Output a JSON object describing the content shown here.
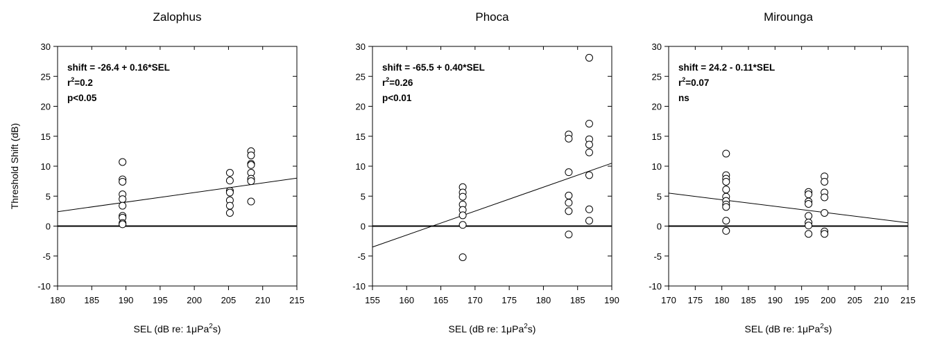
{
  "chart_data": [
    {
      "type": "scatter",
      "title": "Zalophus",
      "xlabel": "SEL (dB re: 1μPa²s)",
      "ylabel": "Threshold Shift (dB)",
      "xlim": [
        180,
        215
      ],
      "ylim": [
        -10,
        30
      ],
      "xticks": [
        180,
        185,
        190,
        195,
        200,
        205,
        210,
        215
      ],
      "yticks": [
        -10,
        -5,
        0,
        5,
        10,
        15,
        20,
        25,
        30
      ],
      "points": [
        [
          189.5,
          10.7
        ],
        [
          189.5,
          7.8
        ],
        [
          189.5,
          7.4
        ],
        [
          189.5,
          5.3
        ],
        [
          189.5,
          4.5
        ],
        [
          189.5,
          3.4
        ],
        [
          189.5,
          1.7
        ],
        [
          189.5,
          1.4
        ],
        [
          189.5,
          0.5
        ],
        [
          189.5,
          0.3
        ],
        [
          205.2,
          8.9
        ],
        [
          205.2,
          7.6
        ],
        [
          205.2,
          5.9
        ],
        [
          205.2,
          5.6
        ],
        [
          205.2,
          4.3
        ],
        [
          205.2,
          3.4
        ],
        [
          205.2,
          2.2
        ],
        [
          208.3,
          12.5
        ],
        [
          208.3,
          11.8
        ],
        [
          208.3,
          10.4
        ],
        [
          208.3,
          10.2
        ],
        [
          208.3,
          8.9
        ],
        [
          208.3,
          7.9
        ],
        [
          208.3,
          7.5
        ],
        [
          208.3,
          4.1
        ]
      ],
      "regression": {
        "intercept": -26.4,
        "slope": 0.16,
        "x_range": [
          180,
          215
        ]
      },
      "annotations": {
        "equation": "shift = -26.4 + 0.16*SEL",
        "r2": "0.2",
        "p": "p<0.05"
      }
    },
    {
      "type": "scatter",
      "title": "Phoca",
      "xlabel": "SEL (dB re: 1μPa²s)",
      "ylabel": "",
      "xlim": [
        155,
        190
      ],
      "ylim": [
        -10,
        30
      ],
      "xticks": [
        155,
        160,
        165,
        170,
        175,
        180,
        185,
        190
      ],
      "yticks": [
        -10,
        -5,
        0,
        5,
        10,
        15,
        20,
        25,
        30
      ],
      "points": [
        [
          168.2,
          6.5
        ],
        [
          168.2,
          5.6
        ],
        [
          168.2,
          4.9
        ],
        [
          168.2,
          3.6
        ],
        [
          168.2,
          2.7
        ],
        [
          168.2,
          1.8
        ],
        [
          168.2,
          0.2
        ],
        [
          168.2,
          -5.2
        ],
        [
          183.7,
          15.3
        ],
        [
          183.7,
          14.6
        ],
        [
          183.7,
          9.0
        ],
        [
          183.7,
          5.1
        ],
        [
          183.7,
          3.9
        ],
        [
          183.7,
          2.5
        ],
        [
          183.7,
          -1.4
        ],
        [
          186.7,
          28.1
        ],
        [
          186.7,
          17.1
        ],
        [
          186.7,
          14.5
        ],
        [
          186.7,
          13.6
        ],
        [
          186.7,
          12.3
        ],
        [
          186.7,
          8.5
        ],
        [
          186.7,
          2.8
        ],
        [
          186.7,
          0.9
        ]
      ],
      "regression": {
        "intercept": -65.5,
        "slope": 0.4,
        "x_range": [
          155,
          190
        ]
      },
      "annotations": {
        "equation": "shift = -65.5 + 0.40*SEL",
        "r2": "0.26",
        "p": "p<0.01"
      }
    },
    {
      "type": "scatter",
      "title": "Mirounga",
      "xlabel": "SEL (dB re: 1μPa²s)",
      "ylabel": "",
      "xlim": [
        170,
        215
      ],
      "ylim": [
        -10,
        30
      ],
      "xticks": [
        170,
        175,
        180,
        185,
        190,
        195,
        200,
        205,
        210,
        215
      ],
      "yticks": [
        -10,
        -5,
        0,
        5,
        10,
        15,
        20,
        25,
        30
      ],
      "points": [
        [
          180.8,
          12.1
        ],
        [
          180.8,
          8.5
        ],
        [
          180.8,
          7.9
        ],
        [
          180.8,
          7.4
        ],
        [
          180.8,
          6.1
        ],
        [
          180.8,
          4.9
        ],
        [
          180.8,
          4.2
        ],
        [
          180.8,
          3.6
        ],
        [
          180.8,
          3.2
        ],
        [
          180.8,
          0.9
        ],
        [
          180.8,
          -0.8
        ],
        [
          196.3,
          5.7
        ],
        [
          196.3,
          5.3
        ],
        [
          196.3,
          4.1
        ],
        [
          196.3,
          3.7
        ],
        [
          196.3,
          1.7
        ],
        [
          196.3,
          0.6
        ],
        [
          196.3,
          0.1
        ],
        [
          196.3,
          -1.3
        ],
        [
          199.3,
          8.3
        ],
        [
          199.3,
          7.4
        ],
        [
          199.3,
          5.6
        ],
        [
          199.3,
          4.8
        ],
        [
          199.3,
          2.2
        ],
        [
          199.3,
          -0.9
        ],
        [
          199.3,
          -1.3
        ]
      ],
      "regression": {
        "intercept": 24.2,
        "slope": -0.11,
        "x_range": [
          170,
          215
        ]
      },
      "annotations": {
        "equation": "shift = 24.2 - 0.11*SEL",
        "r2": "0.07",
        "p": "ns"
      }
    }
  ]
}
